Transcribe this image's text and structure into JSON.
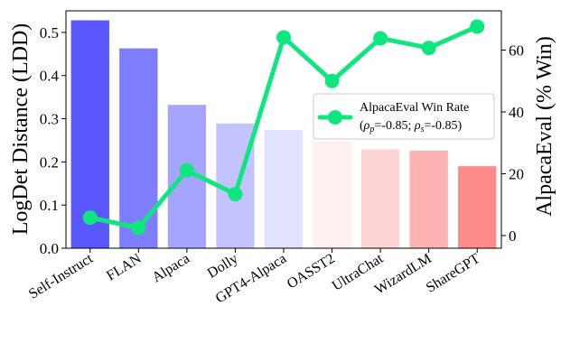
{
  "chart_data": {
    "type": "bar",
    "categories": [
      "Self-Instruct",
      "FLAN",
      "Alpaca",
      "Dolly",
      "GPT4-Alpaca",
      "OASST2",
      "UltraChat",
      "WizardLM",
      "ShareGPT"
    ],
    "series": [
      {
        "axis": "left",
        "type": "bar",
        "values": [
          0.528,
          0.463,
          0.332,
          0.289,
          0.274,
          0.247,
          0.229,
          0.226,
          0.19
        ],
        "colors": [
          "#5858fe",
          "#7e7efd",
          "#a5a5fd",
          "#c3c3fe",
          "#e2e2fd",
          "#fff0f0",
          "#fed3d3",
          "#feb3b3",
          "#ff8a8a"
        ]
      },
      {
        "axis": "right",
        "type": "line",
        "name": "AlpacaEval Win Rate",
        "values": [
          5.8,
          2.5,
          21.1,
          13.4,
          64.1,
          50.0,
          63.8,
          60.7,
          67.6
        ],
        "color": "#10e680"
      }
    ],
    "ylabel": "LogDet Distance (LDD)",
    "ylabel_right": "AlpacaEval (% Win)",
    "ylim": [
      0,
      0.55
    ],
    "ylim_right": [
      -4.1,
      72.7
    ],
    "yticks": [
      "0.0",
      "0.1",
      "0.2",
      "0.3",
      "0.4",
      "0.5"
    ],
    "yticks_right": [
      "0",
      "20",
      "40",
      "60"
    ],
    "legend": {
      "placement": "center-right",
      "entry": "AlpacaEval Win Rate",
      "subtitle_parts": [
        "(",
        "ρ",
        "p",
        "=-0.85; ",
        "ρ",
        "s",
        "=-0.85)"
      ]
    }
  }
}
